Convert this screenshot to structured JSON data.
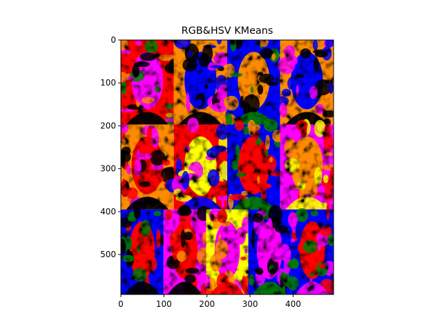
{
  "chart_data": {
    "type": "heatmap",
    "title": "RGB&HSV KMeans",
    "xlabel": "",
    "ylabel": "",
    "image_width": 494,
    "image_height": 593,
    "xlim": [
      0,
      494
    ],
    "ylim": [
      593,
      0
    ],
    "x_ticks": [
      0,
      100,
      200,
      300,
      400
    ],
    "y_ticks": [
      0,
      100,
      200,
      300,
      400,
      500
    ],
    "grid": false,
    "legend": "none",
    "cluster_colors": [
      "#ff0000",
      "#ff00ff",
      "#0000ff",
      "#ff8c00",
      "#ffff00",
      "#008000",
      "#000000"
    ],
    "grid_rows": [
      {
        "y_range": [
          0,
          197
        ],
        "panels": [
          {
            "x_range": [
              0,
              123
            ],
            "dominant": [
              "#ff0000",
              "#ff00ff",
              "#ff8c00",
              "#008000",
              "#000000"
            ]
          },
          {
            "x_range": [
              123,
              247
            ],
            "dominant": [
              "#ff8c00",
              "#0000ff",
              "#ff00ff",
              "#000000"
            ]
          },
          {
            "x_range": [
              247,
              370
            ],
            "dominant": [
              "#0000ff",
              "#ff8c00",
              "#000000",
              "#008000"
            ]
          },
          {
            "x_range": [
              370,
              494
            ],
            "dominant": [
              "#ff8c00",
              "#0000ff",
              "#ff00ff",
              "#000000"
            ]
          }
        ]
      },
      {
        "y_range": [
          197,
          395
        ],
        "panels": [
          {
            "x_range": [
              0,
              123
            ],
            "dominant": [
              "#ff8c00",
              "#ff0000",
              "#ff00ff",
              "#000000"
            ]
          },
          {
            "x_range": [
              123,
              247
            ],
            "dominant": [
              "#ff0000",
              "#ffff00",
              "#ff00ff",
              "#0000ff"
            ]
          },
          {
            "x_range": [
              247,
              370
            ],
            "dominant": [
              "#0000ff",
              "#ff0000",
              "#ff8c00",
              "#008000"
            ]
          },
          {
            "x_range": [
              370,
              494
            ],
            "dominant": [
              "#ff00ff",
              "#ff8c00",
              "#ff0000",
              "#ffff00"
            ]
          }
        ]
      },
      {
        "y_range": [
          395,
          593
        ],
        "panels": [
          {
            "x_range": [
              0,
              99
            ],
            "dominant": [
              "#0000ff",
              "#ff0000",
              "#008000",
              "#000000"
            ]
          },
          {
            "x_range": [
              99,
              198
            ],
            "dominant": [
              "#ff00ff",
              "#ff0000",
              "#ff8c00",
              "#000000"
            ]
          },
          {
            "x_range": [
              198,
              296
            ],
            "dominant": [
              "#ffff00",
              "#ff00ff",
              "#ff8c00",
              "#ff0000"
            ]
          },
          {
            "x_range": [
              296,
              395
            ],
            "dominant": [
              "#0000ff",
              "#ff00ff",
              "#000000",
              "#008000"
            ]
          },
          {
            "x_range": [
              395,
              494
            ],
            "dominant": [
              "#0000ff",
              "#ff0000",
              "#008000",
              "#ff00ff"
            ]
          }
        ]
      }
    ]
  }
}
